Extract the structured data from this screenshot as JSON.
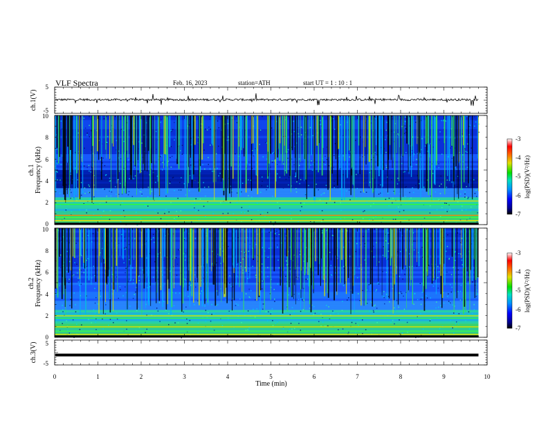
{
  "header": {
    "title": "VLF  Spectra",
    "date": "Feb. 16, 2023",
    "station": "station=ATH",
    "start": "start  UT  =    1  : 10 : 1"
  },
  "chart_data": [
    {
      "type": "line",
      "panel": "ch1-waveform",
      "ylabel": "ch.1(V)",
      "ylim": [
        -5,
        5
      ],
      "yticks": [
        "5",
        "-5"
      ],
      "xlim": [
        0,
        10
      ],
      "baseline": 0.2,
      "data_end_x": 9.8
    },
    {
      "type": "heatmap",
      "panel": "ch1-spectrogram",
      "ylabel_channel": "ch.1",
      "ylabel": "Frequency  (kHz)",
      "ylim": [
        0,
        10
      ],
      "yticks": [
        "0",
        "2",
        "4",
        "6",
        "8",
        "10"
      ],
      "xlim": [
        0,
        10
      ],
      "data_end_x": 9.8,
      "colorbar": {
        "label": "log(PSD)(V²/Hz)",
        "range": [
          -7,
          -3
        ],
        "ticks": [
          "-3",
          "-4",
          "-5",
          "-6",
          "-7"
        ]
      }
    },
    {
      "type": "heatmap",
      "panel": "ch2-spectrogram",
      "ylabel_channel": "ch.2",
      "ylabel": "Frequency  (kHz)",
      "ylim": [
        0,
        10
      ],
      "yticks": [
        "0",
        "2",
        "4",
        "6",
        "8",
        "10"
      ],
      "xlim": [
        0,
        10
      ],
      "data_end_x": 9.8,
      "colorbar": {
        "label": "log(PSD)(V²/Hz)",
        "range": [
          -7,
          -3
        ],
        "ticks": [
          "-3",
          "-4",
          "-5",
          "-6",
          "-7"
        ]
      }
    },
    {
      "type": "line",
      "panel": "ch3-waveform",
      "ylabel": "ch.3(V)",
      "ylim": [
        -5,
        5
      ],
      "yticks": [
        "5",
        "-5"
      ],
      "xlim": [
        0,
        10
      ],
      "baseline": -1.0,
      "data_end_x": 9.8,
      "xlabel": "Time  (min)",
      "xticks": [
        "0",
        "1",
        "2",
        "3",
        "4",
        "5",
        "6",
        "7",
        "8",
        "9",
        "10"
      ]
    }
  ]
}
